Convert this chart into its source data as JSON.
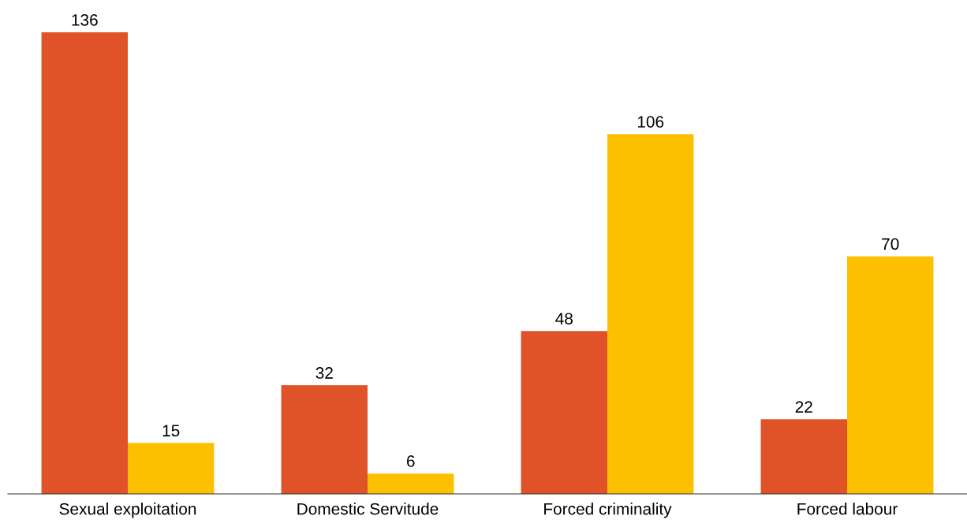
{
  "chart_data": {
    "type": "bar",
    "categories": [
      "Sexual exploitation",
      "Domestic Servitude",
      "Forced criminality",
      "Forced labour"
    ],
    "series": [
      {
        "color": "#e05328",
        "values": [
          136,
          32,
          48,
          22
        ]
      },
      {
        "color": "#fdc000",
        "values": [
          15,
          6,
          106,
          70
        ]
      }
    ],
    "data_labels": true
  }
}
